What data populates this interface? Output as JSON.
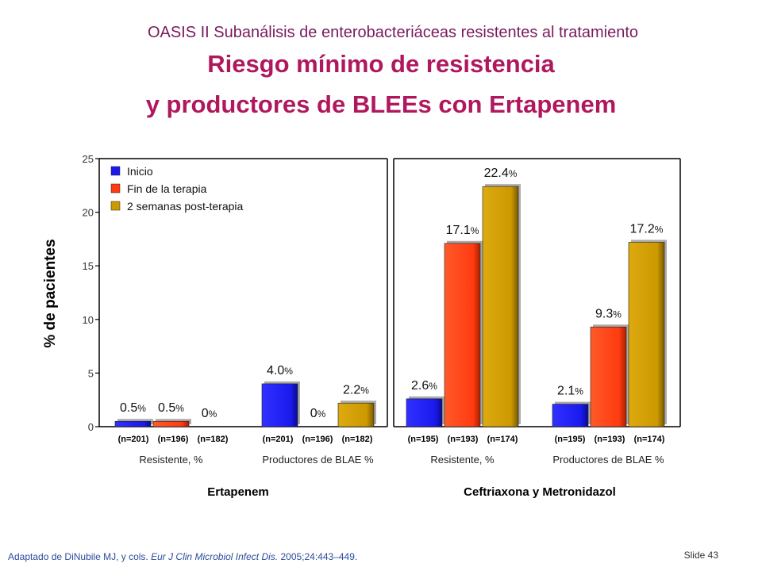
{
  "header": {
    "subtitle": "OASIS II Subanálisis de enterobacteriáceas resistentes al tratamiento",
    "title_line1": "Riesgo mínimo de resistencia",
    "title_line2": "y productores de BLEEs con Ertapenem"
  },
  "footer": {
    "citation_prefix": "Adaptado de DiNubile MJ, y cols. ",
    "citation_journal": "Eur J Clin Microbiol Infect Dis.",
    "citation_suffix": " 2005;24:443–449.",
    "slide_number": "Slide 43"
  },
  "chart_data": {
    "type": "bar",
    "ylabel": "% de pacientes",
    "ylim": [
      0,
      25
    ],
    "yticks": [
      0,
      5,
      10,
      15,
      20,
      25
    ],
    "legend": {
      "placement": "top-left",
      "entries": [
        "Inicio",
        "Fin de la terapia",
        "2 semanas post-terapia"
      ]
    },
    "colors": {
      "inicio": "#1a1aee",
      "fin": "#ff3b10",
      "post": "#cc9900"
    },
    "panels": [
      {
        "name": "Ertapenem",
        "groups": [
          {
            "label": "Resistente, %",
            "values": [
              0.5,
              0.5,
              0
            ],
            "value_labels": [
              "0.5",
              "0.5",
              "0"
            ],
            "n": [
              "(n=201)",
              "(n=196)",
              "(n=182)"
            ]
          },
          {
            "label": "Productores de BLAE %",
            "values": [
              4.0,
              0,
              2.2
            ],
            "value_labels": [
              "4.0",
              "0",
              "2.2"
            ],
            "n": [
              "(n=201)",
              "(n=196)",
              "(n=182)"
            ]
          }
        ]
      },
      {
        "name": "Ceftriaxona y Metronidazol",
        "groups": [
          {
            "label": "Resistente, %",
            "values": [
              2.6,
              17.1,
              22.4
            ],
            "value_labels": [
              "2.6",
              "17.1",
              "22.4"
            ],
            "n": [
              "(n=195)",
              "(n=193)",
              "(n=174)"
            ]
          },
          {
            "label": "Productores de BLAE %",
            "values": [
              2.1,
              9.3,
              17.2
            ],
            "value_labels": [
              "2.1",
              "9.3",
              "17.2"
            ],
            "n": [
              "(n=195)",
              "(n=193)",
              "(n=174)"
            ]
          }
        ]
      }
    ]
  }
}
